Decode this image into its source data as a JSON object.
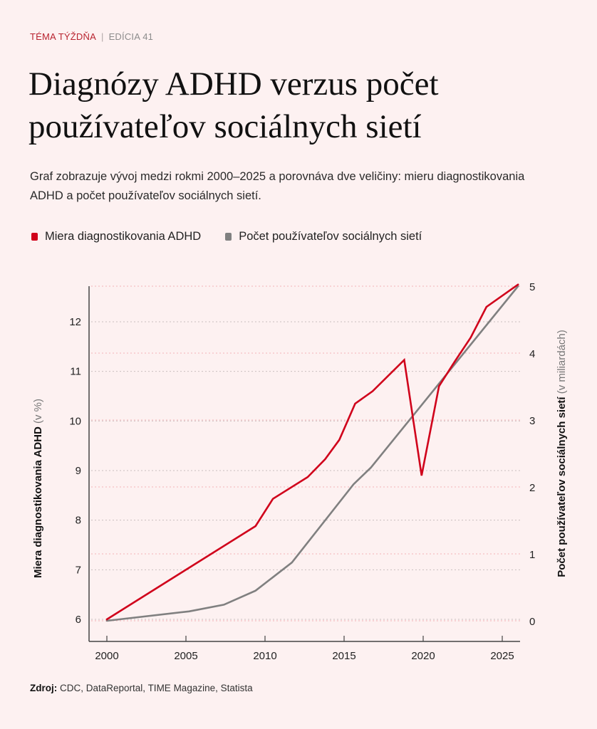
{
  "header": {
    "kicker": "TÉMA TÝŽDŇA",
    "separator": "|",
    "edition": "EDÍCIA 41",
    "title": "Diagnózy ADHD verzus počet používateľov sociálnych sietí",
    "subtitle": "Graf zobrazuje vývoj medzi rokmi 2000–2025 a porovnáva dve veličiny: mieru diagnostikovania ADHD a počet používateľov sociálnych sietí."
  },
  "legend": [
    {
      "label": "Miera diagnostikovania ADHD",
      "color": "#d0021b"
    },
    {
      "label": "Počet používateľov sociálnych sietí",
      "color": "#808080"
    }
  ],
  "source": {
    "label": "Zdroj:",
    "text": "CDC, DataReportal, TIME Magazine, Statista"
  },
  "chart_data": {
    "type": "line",
    "title": "Diagnózy ADHD verzus počet používateľov sociálnych sietí",
    "xlabel": "",
    "x_ticks": [
      2000,
      2005,
      2010,
      2015,
      2020,
      2025
    ],
    "xlim": [
      1999,
      2026
    ],
    "y_left": {
      "label": "Miera diagnostikovania ADHD",
      "unit": "(v %)",
      "ticks": [
        6,
        7,
        8,
        9,
        10,
        11,
        12
      ],
      "ylim": [
        6,
        12.75
      ]
    },
    "y_right": {
      "label": "Počet používateľov sociálnych sietí",
      "unit": "(v miliardách)",
      "ticks": [
        0,
        1,
        2,
        3,
        4,
        5
      ],
      "ylim": [
        0,
        5
      ]
    },
    "grid": true,
    "legend_position": "top-left",
    "series": [
      {
        "name": "Miera diagnostikovania ADHD",
        "axis": "left",
        "color": "#d0021b",
        "x": [
          2000,
          2009.4,
          2010.5,
          2012.7,
          2013.8,
          2014.7,
          2015.7,
          2016.8,
          2018.8,
          2019.9,
          2021.0,
          2022.0,
          2023.0,
          2024.0,
          2026.0
        ],
        "values": [
          6.0,
          7.88,
          8.43,
          8.87,
          9.23,
          9.62,
          10.35,
          10.6,
          11.23,
          8.9,
          10.7,
          11.2,
          11.68,
          12.3,
          12.75
        ]
      },
      {
        "name": "Počet používateľov sociálnych sietí",
        "axis": "right",
        "color": "#808080",
        "x": [
          2000,
          2005.2,
          2007.4,
          2009.4,
          2011.7,
          2015.6,
          2016.7,
          2026.0
        ],
        "values": [
          0.0,
          0.14,
          0.24,
          0.45,
          0.87,
          2.04,
          2.29,
          5.0
        ]
      }
    ]
  }
}
